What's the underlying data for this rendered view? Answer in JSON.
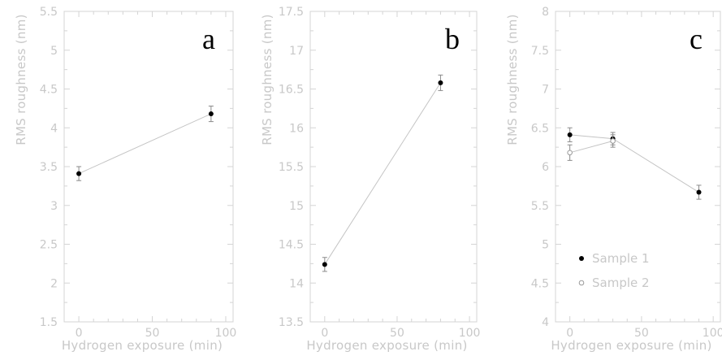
{
  "chart_data": [
    {
      "type": "line",
      "panel_label": "a",
      "xlabel": "Hydrogen exposure (min)",
      "ylabel": "RMS roughness  (nm)",
      "xlim": [
        -10,
        105
      ],
      "ylim": [
        1.5,
        5.5
      ],
      "xticks": [
        0,
        50,
        100
      ],
      "yticks": [
        1.5,
        2,
        2.5,
        3,
        3.5,
        4,
        4.5,
        5,
        5.5
      ],
      "ytick_labels": [
        "1.5",
        "2",
        "2.5",
        "3",
        "3.5",
        "4",
        "4.5",
        "5",
        "5.5"
      ],
      "grid": false,
      "series": [
        {
          "marker": "filled",
          "x": [
            0,
            90
          ],
          "y": [
            3.41,
            4.18
          ],
          "err": [
            0.09,
            0.1
          ]
        }
      ]
    },
    {
      "type": "line",
      "panel_label": "b",
      "xlabel": "Hydrogen exposure (min)",
      "ylabel": "RMS roughness  (nm)",
      "xlim": [
        -10,
        105
      ],
      "ylim": [
        13.5,
        17.5
      ],
      "xticks": [
        0,
        50,
        100
      ],
      "yticks": [
        13.5,
        14,
        14.5,
        15,
        15.5,
        16,
        16.5,
        17,
        17.5
      ],
      "ytick_labels": [
        "13.5",
        "14",
        "14.5",
        "15",
        "15.5",
        "16",
        "16.5",
        "17",
        "17.5"
      ],
      "grid": false,
      "series": [
        {
          "marker": "filled",
          "x": [
            0,
            80
          ],
          "y": [
            14.24,
            16.58
          ],
          "err": [
            0.09,
            0.1
          ]
        }
      ]
    },
    {
      "type": "line",
      "panel_label": "c",
      "xlabel": "Hydrogen exposure (min)",
      "ylabel": "RMS roughness  (nm)",
      "xlim": [
        -10,
        105
      ],
      "ylim": [
        4,
        8
      ],
      "xticks": [
        0,
        50,
        100
      ],
      "yticks": [
        4,
        4.5,
        5,
        5.5,
        6,
        6.5,
        7,
        7.5,
        8
      ],
      "ytick_labels": [
        "4",
        "4.5",
        "5",
        "5.5",
        "6",
        "6.5",
        "7",
        "7.5",
        "8"
      ],
      "grid": false,
      "legend_position": "bottom-left",
      "series": [
        {
          "name": "Sample 1",
          "marker": "filled",
          "x": [
            0,
            30,
            90
          ],
          "y": [
            6.41,
            6.36,
            5.67
          ],
          "err": [
            0.09,
            0.08,
            0.09
          ]
        },
        {
          "name": "Sample 2",
          "marker": "open",
          "x": [
            0,
            30
          ],
          "y": [
            6.18,
            6.33
          ],
          "err": [
            0.1,
            0.08
          ]
        }
      ]
    }
  ]
}
